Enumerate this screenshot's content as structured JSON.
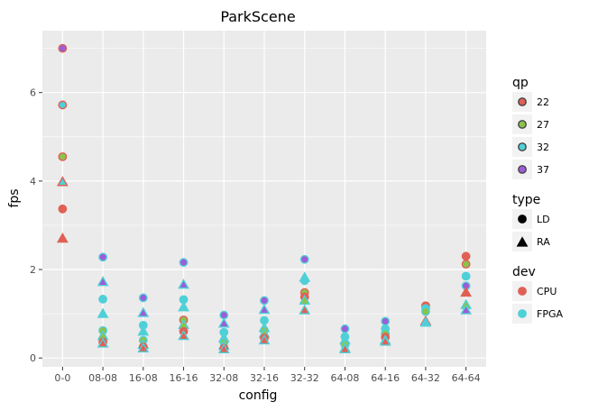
{
  "chart_data": {
    "type": "scatter",
    "title": "ParkScene",
    "xlabel": "config",
    "ylabel": "fps",
    "categories": [
      "0-0",
      "08-08",
      "16-08",
      "16-16",
      "32-08",
      "32-16",
      "32-32",
      "64-08",
      "64-16",
      "64-32",
      "64-64"
    ],
    "ylim": [
      -0.2,
      7.4
    ],
    "yticks": [
      0,
      2,
      4,
      6
    ],
    "grid": true,
    "legend_placement": "right",
    "colors": {
      "qp": {
        "22": "#e06055",
        "27": "#8bc34a",
        "32": "#4fd0d8",
        "37": "#9c5dd8"
      },
      "dev": {
        "CPU": "#e06055",
        "FPGA": "#4fd0d8"
      },
      "panel_bg": "#ebebeb",
      "grid": "#ffffff"
    },
    "legends": [
      {
        "title": "qp",
        "kind": "fill",
        "entries": [
          {
            "label": "22",
            "color": "#e06055"
          },
          {
            "label": "27",
            "color": "#8bc34a"
          },
          {
            "label": "32",
            "color": "#4fd0d8"
          },
          {
            "label": "37",
            "color": "#9c5dd8"
          }
        ]
      },
      {
        "title": "type",
        "kind": "shape",
        "entries": [
          {
            "label": "LD",
            "shape": "circle"
          },
          {
            "label": "RA",
            "shape": "triangle"
          }
        ]
      },
      {
        "title": "dev",
        "kind": "stroke",
        "entries": [
          {
            "label": "CPU",
            "color": "#e06055"
          },
          {
            "label": "FPGA",
            "color": "#4fd0d8"
          }
        ]
      }
    ],
    "points": [
      {
        "config": "0-0",
        "fps": 7.0,
        "qp": "37",
        "type": "LD",
        "dev": "CPU"
      },
      {
        "config": "0-0",
        "fps": 5.72,
        "qp": "32",
        "type": "LD",
        "dev": "CPU"
      },
      {
        "config": "0-0",
        "fps": 4.55,
        "qp": "27",
        "type": "LD",
        "dev": "CPU"
      },
      {
        "config": "0-0",
        "fps": 3.98,
        "qp": "32",
        "type": "RA",
        "dev": "CPU"
      },
      {
        "config": "0-0",
        "fps": 3.37,
        "qp": "22",
        "type": "LD",
        "dev": "CPU"
      },
      {
        "config": "0-0",
        "fps": 2.7,
        "qp": "22",
        "type": "RA",
        "dev": "CPU"
      },
      {
        "config": "08-08",
        "fps": 2.28,
        "qp": "37",
        "type": "LD",
        "dev": "FPGA"
      },
      {
        "config": "08-08",
        "fps": 1.72,
        "qp": "37",
        "type": "RA",
        "dev": "FPGA"
      },
      {
        "config": "08-08",
        "fps": 1.33,
        "qp": "32",
        "type": "LD",
        "dev": "FPGA"
      },
      {
        "config": "08-08",
        "fps": 1.0,
        "qp": "32",
        "type": "RA",
        "dev": "FPGA"
      },
      {
        "config": "08-08",
        "fps": 0.62,
        "qp": "27",
        "type": "LD",
        "dev": "FPGA"
      },
      {
        "config": "08-08",
        "fps": 0.5,
        "qp": "27",
        "type": "RA",
        "dev": "FPGA"
      },
      {
        "config": "08-08",
        "fps": 0.36,
        "qp": "22",
        "type": "LD",
        "dev": "CPU"
      },
      {
        "config": "08-08",
        "fps": 0.33,
        "qp": "22",
        "type": "RA",
        "dev": "FPGA"
      },
      {
        "config": "16-08",
        "fps": 1.36,
        "qp": "37",
        "type": "LD",
        "dev": "FPGA"
      },
      {
        "config": "16-08",
        "fps": 1.02,
        "qp": "37",
        "type": "RA",
        "dev": "FPGA"
      },
      {
        "config": "16-08",
        "fps": 0.74,
        "qp": "32",
        "type": "LD",
        "dev": "FPGA"
      },
      {
        "config": "16-08",
        "fps": 0.6,
        "qp": "32",
        "type": "RA",
        "dev": "FPGA"
      },
      {
        "config": "16-08",
        "fps": 0.4,
        "qp": "27",
        "type": "LD",
        "dev": "FPGA"
      },
      {
        "config": "16-08",
        "fps": 0.3,
        "qp": "27",
        "type": "RA",
        "dev": "FPGA"
      },
      {
        "config": "16-08",
        "fps": 0.25,
        "qp": "22",
        "type": "LD",
        "dev": "CPU"
      },
      {
        "config": "16-08",
        "fps": 0.22,
        "qp": "22",
        "type": "RA",
        "dev": "FPGA"
      },
      {
        "config": "16-16",
        "fps": 2.16,
        "qp": "37",
        "type": "LD",
        "dev": "FPGA"
      },
      {
        "config": "16-16",
        "fps": 1.66,
        "qp": "37",
        "type": "RA",
        "dev": "FPGA"
      },
      {
        "config": "16-16",
        "fps": 1.32,
        "qp": "32",
        "type": "LD",
        "dev": "FPGA"
      },
      {
        "config": "16-16",
        "fps": 1.15,
        "qp": "32",
        "type": "RA",
        "dev": "FPGA"
      },
      {
        "config": "16-16",
        "fps": 0.86,
        "qp": "27",
        "type": "LD",
        "dev": "CPU"
      },
      {
        "config": "16-16",
        "fps": 0.75,
        "qp": "27",
        "type": "RA",
        "dev": "FPGA"
      },
      {
        "config": "16-16",
        "fps": 0.6,
        "qp": "22",
        "type": "LD",
        "dev": "CPU"
      },
      {
        "config": "16-16",
        "fps": 0.5,
        "qp": "22",
        "type": "RA",
        "dev": "FPGA"
      },
      {
        "config": "32-08",
        "fps": 0.97,
        "qp": "37",
        "type": "LD",
        "dev": "FPGA"
      },
      {
        "config": "32-08",
        "fps": 0.78,
        "qp": "37",
        "type": "RA",
        "dev": "FPGA"
      },
      {
        "config": "32-08",
        "fps": 0.58,
        "qp": "32",
        "type": "LD",
        "dev": "FPGA"
      },
      {
        "config": "32-08",
        "fps": 0.45,
        "qp": "32",
        "type": "RA",
        "dev": "FPGA"
      },
      {
        "config": "32-08",
        "fps": 0.35,
        "qp": "27",
        "type": "LD",
        "dev": "FPGA"
      },
      {
        "config": "32-08",
        "fps": 0.28,
        "qp": "27",
        "type": "RA",
        "dev": "FPGA"
      },
      {
        "config": "32-08",
        "fps": 0.22,
        "qp": "22",
        "type": "LD",
        "dev": "CPU"
      },
      {
        "config": "32-08",
        "fps": 0.2,
        "qp": "22",
        "type": "RA",
        "dev": "FPGA"
      },
      {
        "config": "32-16",
        "fps": 1.3,
        "qp": "37",
        "type": "LD",
        "dev": "FPGA"
      },
      {
        "config": "32-16",
        "fps": 1.09,
        "qp": "37",
        "type": "RA",
        "dev": "FPGA"
      },
      {
        "config": "32-16",
        "fps": 0.85,
        "qp": "32",
        "type": "LD",
        "dev": "FPGA"
      },
      {
        "config": "32-16",
        "fps": 0.68,
        "qp": "32",
        "type": "RA",
        "dev": "FPGA"
      },
      {
        "config": "32-16",
        "fps": 0.62,
        "qp": "27",
        "type": "LD",
        "dev": "FPGA"
      },
      {
        "config": "32-16",
        "fps": 0.55,
        "qp": "27",
        "type": "RA",
        "dev": "FPGA"
      },
      {
        "config": "32-16",
        "fps": 0.45,
        "qp": "22",
        "type": "LD",
        "dev": "CPU"
      },
      {
        "config": "32-16",
        "fps": 0.4,
        "qp": "22",
        "type": "RA",
        "dev": "FPGA"
      },
      {
        "config": "32-32",
        "fps": 2.23,
        "qp": "37",
        "type": "LD",
        "dev": "FPGA"
      },
      {
        "config": "32-32",
        "fps": 1.82,
        "qp": "32",
        "type": "RA",
        "dev": "FPGA"
      },
      {
        "config": "32-32",
        "fps": 1.75,
        "qp": "32",
        "type": "LD",
        "dev": "FPGA"
      },
      {
        "config": "32-32",
        "fps": 1.48,
        "qp": "27",
        "type": "LD",
        "dev": "CPU"
      },
      {
        "config": "32-32",
        "fps": 1.38,
        "qp": "22",
        "type": "LD",
        "dev": "CPU"
      },
      {
        "config": "32-32",
        "fps": 1.3,
        "qp": "27",
        "type": "RA",
        "dev": "FPGA"
      },
      {
        "config": "32-32",
        "fps": 1.08,
        "qp": "22",
        "type": "RA",
        "dev": "FPGA"
      },
      {
        "config": "64-08",
        "fps": 0.66,
        "qp": "37",
        "type": "LD",
        "dev": "FPGA"
      },
      {
        "config": "64-08",
        "fps": 0.48,
        "qp": "32",
        "type": "LD",
        "dev": "FPGA"
      },
      {
        "config": "64-08",
        "fps": 0.4,
        "qp": "32",
        "type": "RA",
        "dev": "FPGA"
      },
      {
        "config": "64-08",
        "fps": 0.3,
        "qp": "27",
        "type": "LD",
        "dev": "FPGA"
      },
      {
        "config": "64-08",
        "fps": 0.22,
        "qp": "27",
        "type": "RA",
        "dev": "FPGA"
      },
      {
        "config": "64-08",
        "fps": 0.2,
        "qp": "22",
        "type": "RA",
        "dev": "FPGA"
      },
      {
        "config": "64-16",
        "fps": 0.83,
        "qp": "37",
        "type": "LD",
        "dev": "FPGA"
      },
      {
        "config": "64-16",
        "fps": 0.66,
        "qp": "32",
        "type": "LD",
        "dev": "FPGA"
      },
      {
        "config": "64-16",
        "fps": 0.55,
        "qp": "27",
        "type": "LD",
        "dev": "FPGA"
      },
      {
        "config": "64-16",
        "fps": 0.47,
        "qp": "22",
        "type": "LD",
        "dev": "CPU"
      },
      {
        "config": "64-16",
        "fps": 0.4,
        "qp": "27",
        "type": "RA",
        "dev": "FPGA"
      },
      {
        "config": "64-16",
        "fps": 0.37,
        "qp": "22",
        "type": "RA",
        "dev": "FPGA"
      },
      {
        "config": "64-32",
        "fps": 1.18,
        "qp": "22",
        "type": "LD",
        "dev": "CPU"
      },
      {
        "config": "64-32",
        "fps": 1.12,
        "qp": "32",
        "type": "LD",
        "dev": "FPGA"
      },
      {
        "config": "64-32",
        "fps": 1.05,
        "qp": "27",
        "type": "LD",
        "dev": "FPGA"
      },
      {
        "config": "64-32",
        "fps": 0.83,
        "qp": "22",
        "type": "RA",
        "dev": "CPU"
      },
      {
        "config": "64-32",
        "fps": 0.8,
        "qp": "32",
        "type": "RA",
        "dev": "FPGA"
      },
      {
        "config": "64-64",
        "fps": 2.3,
        "qp": "22",
        "type": "LD",
        "dev": "CPU"
      },
      {
        "config": "64-64",
        "fps": 2.12,
        "qp": "27",
        "type": "LD",
        "dev": "CPU"
      },
      {
        "config": "64-64",
        "fps": 1.85,
        "qp": "32",
        "type": "LD",
        "dev": "FPGA"
      },
      {
        "config": "64-64",
        "fps": 1.63,
        "qp": "37",
        "type": "LD",
        "dev": "FPGA"
      },
      {
        "config": "64-64",
        "fps": 1.48,
        "qp": "22",
        "type": "RA",
        "dev": "CPU"
      },
      {
        "config": "64-64",
        "fps": 1.2,
        "qp": "27",
        "type": "RA",
        "dev": "FPGA"
      },
      {
        "config": "64-64",
        "fps": 1.08,
        "qp": "37",
        "type": "RA",
        "dev": "FPGA"
      }
    ]
  }
}
